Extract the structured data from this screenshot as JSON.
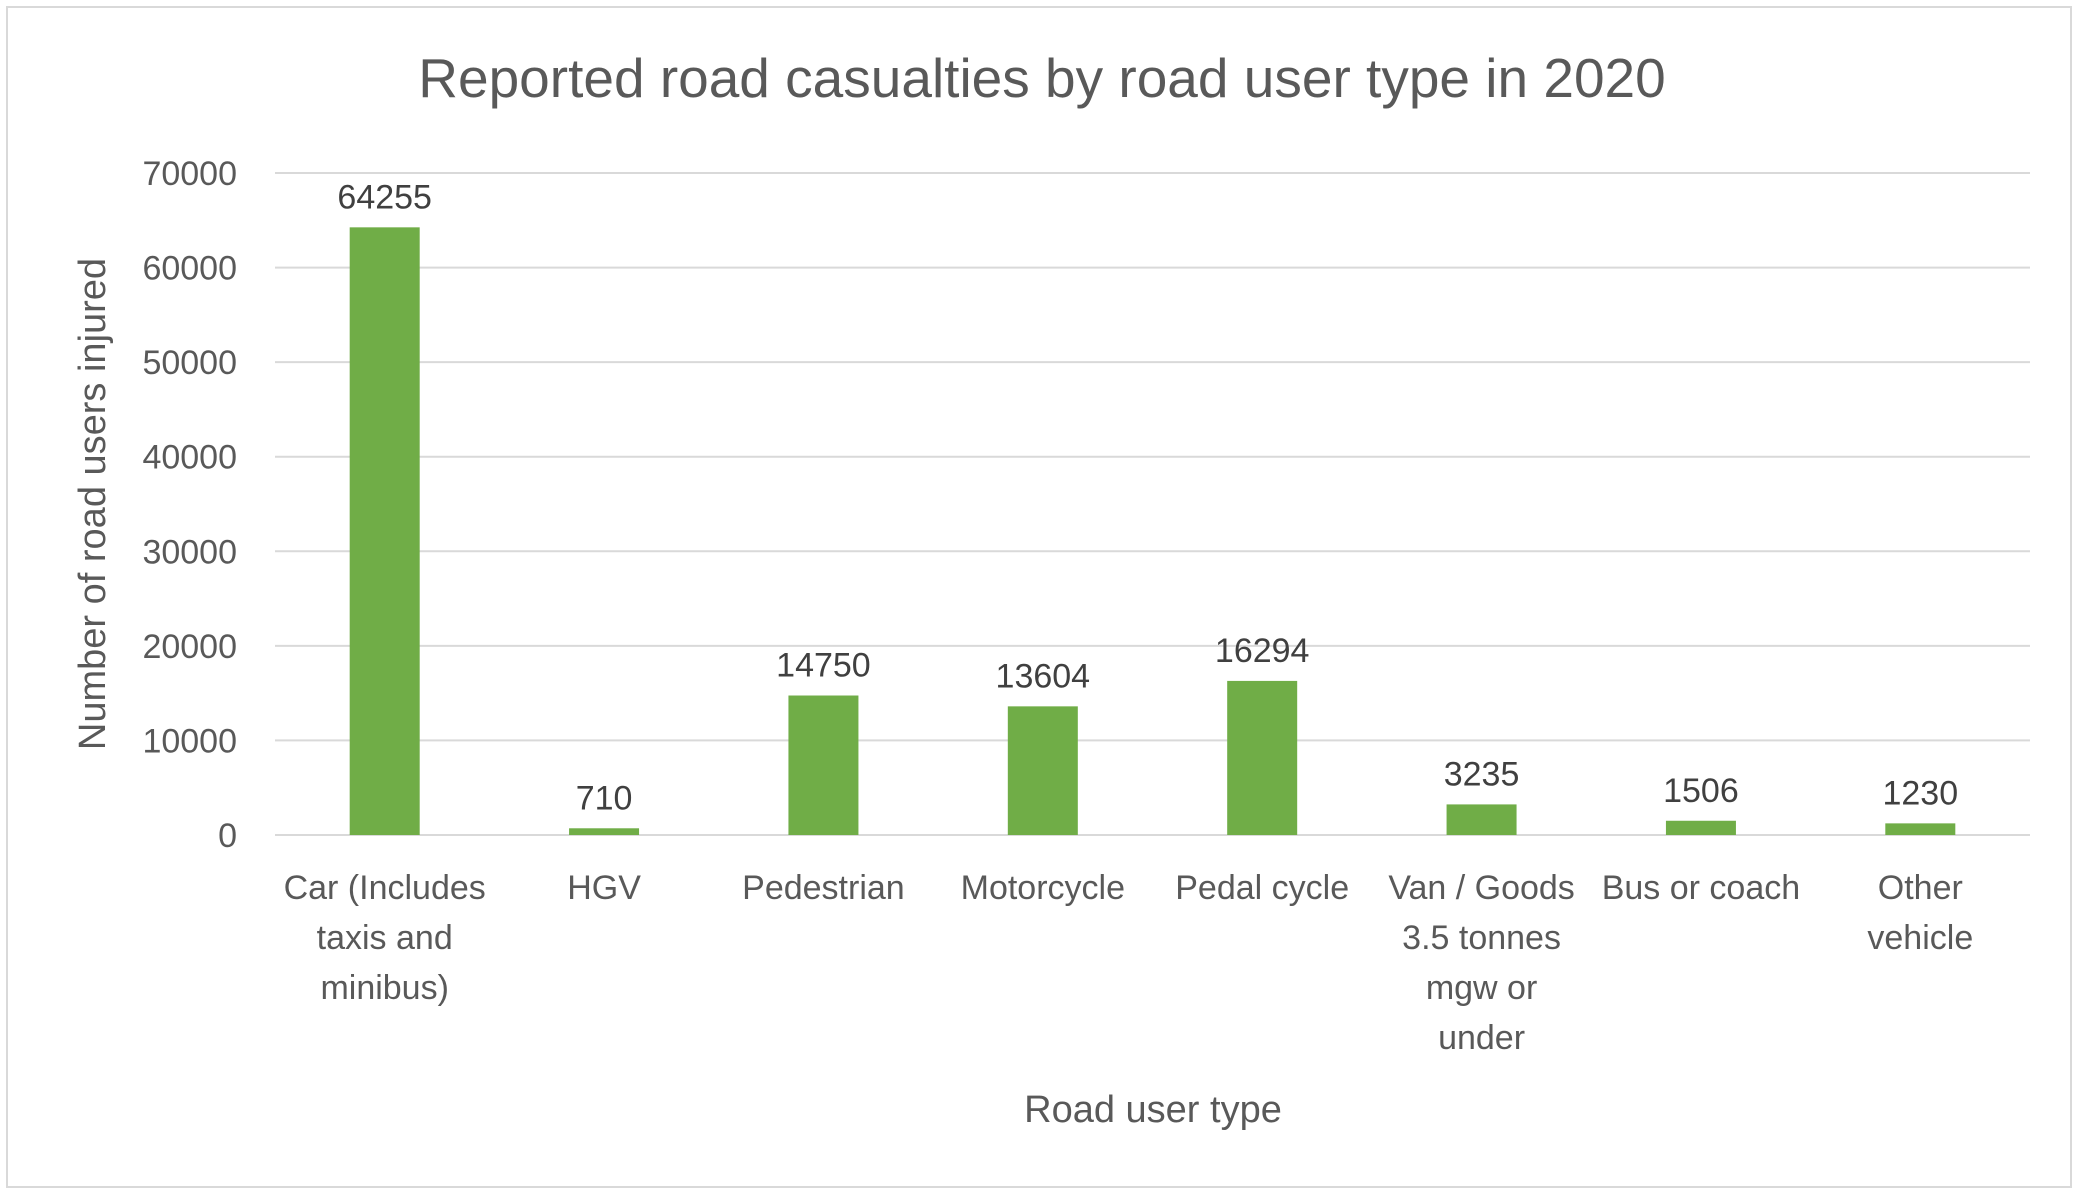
{
  "chart_data": {
    "type": "bar",
    "title": "Reported road casualties by road user type in 2020",
    "xlabel": "Road user type",
    "ylabel": "Number of road users injured",
    "ylim": [
      0,
      70000
    ],
    "yticks": [
      "0",
      "10000",
      "20000",
      "30000",
      "40000",
      "50000",
      "60000",
      "70000"
    ],
    "categories": [
      [
        "Car (Includes",
        "taxis and",
        "minibus)"
      ],
      [
        "HGV"
      ],
      [
        "Pedestrian"
      ],
      [
        "Motorcycle"
      ],
      [
        "Pedal cycle"
      ],
      [
        "Van / Goods",
        "3.5 tonnes",
        "mgw or",
        "under"
      ],
      [
        "Bus or coach"
      ],
      [
        "Other",
        "vehicle"
      ]
    ],
    "values": [
      64255,
      710,
      14750,
      13604,
      16294,
      3235,
      1506,
      1230
    ],
    "data_labels": [
      "64255",
      "710",
      "14750",
      "13604",
      "16294",
      "3235",
      "1506",
      "1230"
    ],
    "bar_color": "#70ad47",
    "grid": true,
    "legend": "none"
  }
}
